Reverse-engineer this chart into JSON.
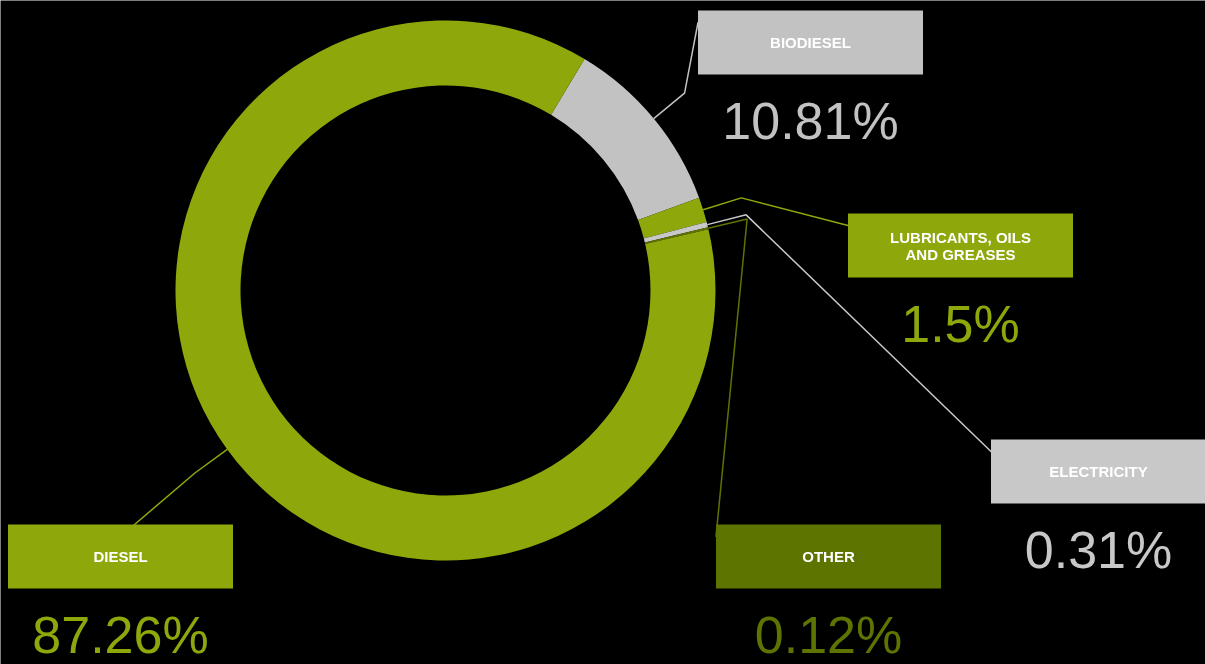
{
  "chart_data": {
    "type": "donut",
    "categories": [
      "BIODIESEL",
      "LUBRICANTS, OILS AND GREASES",
      "ELECTRICITY",
      "OTHER",
      "DIESEL"
    ],
    "values": [
      10.81,
      1.5,
      0.31,
      0.12,
      87.26
    ],
    "value_labels": [
      "10.81%",
      "1.5%",
      "0.31%",
      "0.12%",
      "87.26%"
    ],
    "colors": [
      "#c2c2c2",
      "#8ea80c",
      "#c8c8c8",
      "#5d7400",
      "#8ea80c"
    ]
  }
}
